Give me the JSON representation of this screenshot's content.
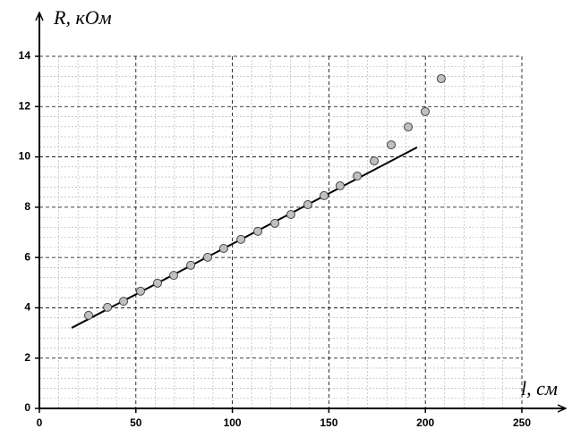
{
  "chart_data": {
    "type": "scatter",
    "x_label": "l, см",
    "y_label": "R, кОм",
    "xlim": [
      0,
      250
    ],
    "ylim": [
      0,
      14
    ],
    "xticks": [
      0,
      50,
      100,
      150,
      200,
      250
    ],
    "yticks": [
      0,
      2,
      4,
      6,
      8,
      10,
      12,
      14
    ],
    "grid": true,
    "points": {
      "color": "#c0c0c0",
      "x": [
        25.5,
        35.3,
        43.6,
        52.4,
        61.2,
        69.6,
        78.4,
        87.2,
        95.5,
        104.4,
        113.2,
        122,
        130.3,
        139.1,
        147.5,
        155.8,
        164.7,
        173.5,
        182.3,
        191.1,
        199.9,
        208.2
      ],
      "y": [
        3.7,
        4.02,
        4.26,
        4.66,
        4.98,
        5.29,
        5.69,
        6.01,
        6.36,
        6.72,
        7.04,
        7.36,
        7.71,
        8.1,
        8.46,
        8.85,
        9.24,
        9.84,
        10.48,
        11.19,
        11.8,
        13.11
      ]
    },
    "fit_line": {
      "color": "#000000",
      "x": [
        16.7,
        195.7
      ],
      "y": [
        3.2,
        10.38
      ]
    }
  }
}
